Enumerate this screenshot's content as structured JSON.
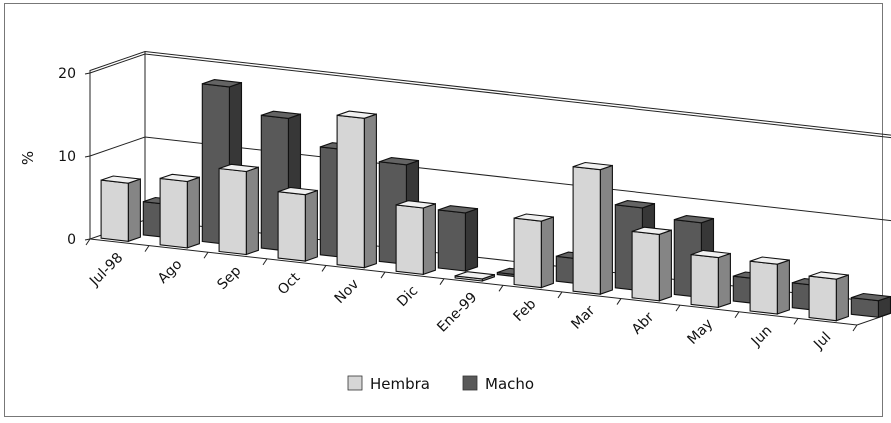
{
  "chart_data": {
    "type": "bar",
    "categories": [
      "Jul-98",
      "Ago",
      "Sep",
      "Oct",
      "Nov",
      "Dic",
      "Ene-99",
      "Feb",
      "Mar",
      "Abr",
      "May",
      "Jun",
      "Jul"
    ],
    "series": [
      {
        "name": "Hembra",
        "values": [
          7,
          8,
          10,
          8,
          18,
          8,
          0,
          8,
          15,
          8,
          6,
          6,
          5
        ],
        "color": "#d6d6d6"
      },
      {
        "name": "Macho",
        "values": [
          4,
          19,
          16,
          13,
          12,
          7,
          0,
          3,
          10,
          9,
          3,
          3,
          2
        ],
        "color": "#595959"
      }
    ],
    "title": "",
    "xlabel": "",
    "ylabel": "%",
    "yticks": [
      0,
      10,
      20
    ],
    "ylim": [
      0,
      20
    ],
    "grid": true,
    "view": "3d",
    "legend_position": "bottom"
  }
}
